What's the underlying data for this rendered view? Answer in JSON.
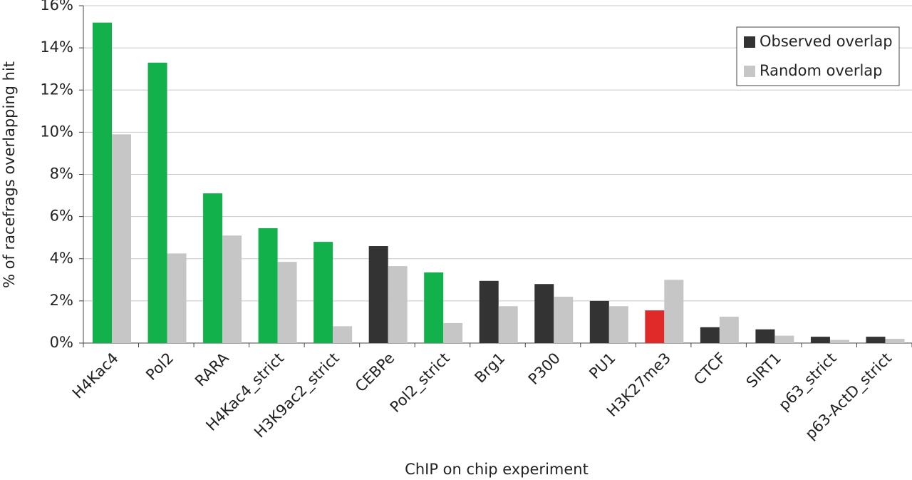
{
  "chart_data": {
    "type": "bar",
    "x_label": "ChIP on chip experiment",
    "y_label": "% of racefrags overlapping hit",
    "categories": [
      "H4Kac4",
      "Pol2",
      "RARA",
      "H4Kac4_strict",
      "H3K9ac2_strict",
      "CEBPe",
      "Pol2_strict",
      "Brg1",
      "P300",
      "PU1",
      "H3K27me3",
      "CTCF",
      "SIRT1",
      "p63_strict",
      "p63-ActD_strict"
    ],
    "series": [
      {
        "name": "Observed overlap",
        "color": "#333333",
        "colors": [
          "#12b14b",
          "#12b14b",
          "#12b14b",
          "#12b14b",
          "#12b14b",
          "#333333",
          "#12b14b",
          "#333333",
          "#333333",
          "#333333",
          "#e02a2a",
          "#333333",
          "#333333",
          "#333333",
          "#333333"
        ],
        "values": [
          15.2,
          13.3,
          7.1,
          5.45,
          4.8,
          4.6,
          3.35,
          2.95,
          2.8,
          2.0,
          1.55,
          0.75,
          0.65,
          0.3,
          0.3
        ]
      },
      {
        "name": "Random overlap",
        "color": "#c6c6c6",
        "values": [
          9.9,
          4.25,
          5.1,
          3.85,
          0.8,
          3.65,
          0.95,
          1.75,
          2.2,
          1.75,
          3.0,
          1.25,
          0.35,
          0.15,
          0.2
        ]
      }
    ],
    "ylim": [
      0,
      16
    ],
    "yticks": [
      {
        "value": 0,
        "label": "0%"
      },
      {
        "value": 2,
        "label": "2%"
      },
      {
        "value": 4,
        "label": "4%"
      },
      {
        "value": 6,
        "label": "6%"
      },
      {
        "value": 8,
        "label": "8%"
      },
      {
        "value": 10,
        "label": "10%"
      },
      {
        "value": 12,
        "label": "12%"
      },
      {
        "value": 14,
        "label": "14%"
      },
      {
        "value": 16,
        "label": "16%"
      }
    ],
    "grid": true,
    "legend": "top-right"
  }
}
